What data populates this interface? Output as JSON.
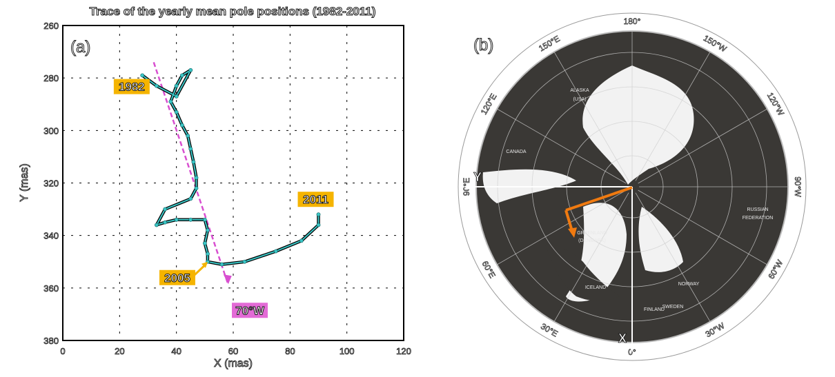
{
  "chart_data": [
    {
      "type": "scatter",
      "title": "Trace of the yearly mean pole positions (1982-2011)",
      "panel_label": "(a)",
      "xlabel": "X (mas)",
      "ylabel": "Y (mas)",
      "xlim": [
        0,
        120
      ],
      "ylim": [
        380,
        260
      ],
      "y_inverted": true,
      "xticks": [
        0,
        20,
        40,
        60,
        80,
        100,
        120
      ],
      "yticks": [
        260,
        280,
        300,
        320,
        340,
        360,
        380
      ],
      "grid": true,
      "series": [
        {
          "name": "",
          "color": "#3cc6c6",
          "points": [
            [
              28,
              279
            ],
            [
              33,
              283
            ],
            [
              40,
              287
            ],
            [
              45,
              277
            ],
            [
              42,
              279
            ],
            [
              40,
              283
            ],
            [
              38,
              289
            ],
            [
              40,
              293
            ],
            [
              42,
              298
            ],
            [
              44,
              302
            ],
            [
              45,
              307
            ],
            [
              46,
              312
            ],
            [
              47,
              318
            ],
            [
              47,
              322
            ],
            [
              45,
              326
            ],
            [
              36,
              330
            ],
            [
              33,
              336
            ],
            [
              36,
              335
            ],
            [
              40,
              334
            ],
            [
              45,
              334
            ],
            [
              50,
              334
            ],
            [
              51,
              338
            ],
            [
              50,
              343
            ],
            [
              51,
              347
            ],
            [
              51,
              350
            ],
            [
              56,
              351
            ],
            [
              64,
              350
            ],
            [
              75,
              346
            ],
            [
              84,
              342
            ],
            [
              90,
              336
            ],
            [
              90,
              332
            ]
          ]
        }
      ],
      "annotations": [
        {
          "text": "1982",
          "x": 33,
          "y": 283,
          "bg": "#f5b400"
        },
        {
          "text": "2005",
          "x": 51,
          "y": 350,
          "bg": "#f5b400"
        },
        {
          "text": "2011",
          "x": 90,
          "y": 332,
          "bg": "#f5b400"
        },
        {
          "text": "70°W",
          "x": 60,
          "y": 363,
          "bg": "#e36bd6"
        }
      ],
      "trend_line": {
        "from": [
          32,
          274
        ],
        "to": [
          58,
          358
        ],
        "color": "#d84fd0",
        "style": "dashed"
      }
    },
    {
      "type": "map",
      "panel_label": "(b)",
      "projection": "north-polar stereographic",
      "longitude_labels": [
        "180°",
        "150°W",
        "120°W",
        "90°W",
        "60°W",
        "30°W",
        "0°",
        "30°E",
        "60°E",
        "90°E",
        "120°E",
        "150°E"
      ],
      "region_labels": [
        "ALASKA",
        "(USA)",
        "CANADA",
        "GREENLAND",
        "(DENMARK)",
        "RUSSIAN",
        "FEDERATION",
        "ICELAND",
        "NORWAY",
        "SWEDEN",
        "FINLAND"
      ],
      "axis_labels": {
        "x": "X",
        "y": "Y"
      },
      "arrow_color": "#f07a10"
    }
  ]
}
